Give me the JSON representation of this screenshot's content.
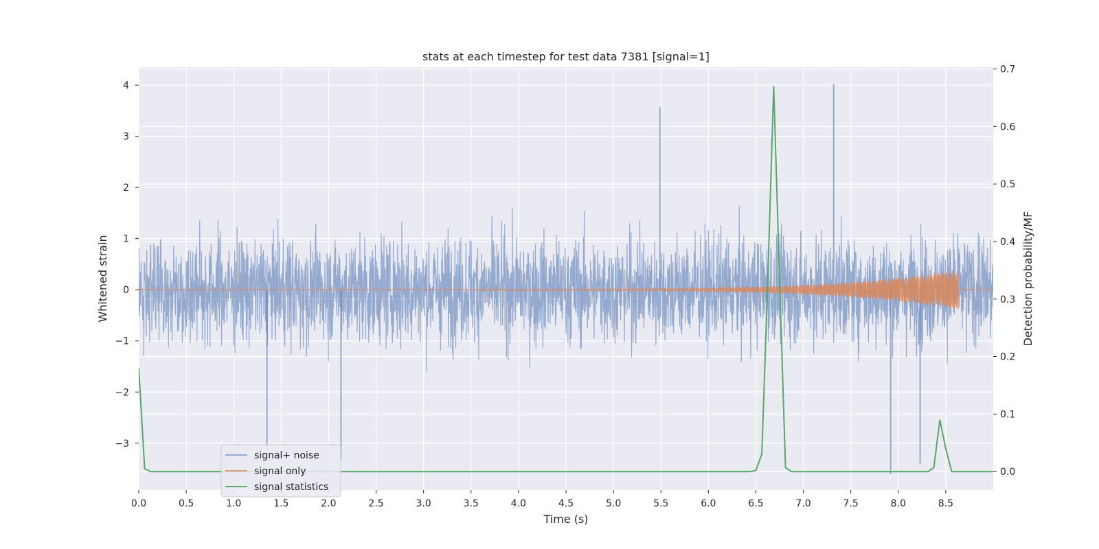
{
  "chart_data": {
    "type": "line",
    "title": "stats at each timestep for test data 7381 [signal=1]",
    "xlabel": "Time (s)",
    "ylabel": "Whitened strain",
    "y2label": "Detection probability/MF",
    "xlim": [
      0.0,
      9.0
    ],
    "ylim": [
      -3.915,
      4.35
    ],
    "y2lim": [
      -0.032,
      0.703
    ],
    "xticks": [
      "0.0",
      "0.5",
      "1.0",
      "1.5",
      "2.0",
      "2.5",
      "3.0",
      "3.5",
      "4.0",
      "4.5",
      "5.0",
      "5.5",
      "6.0",
      "6.5",
      "7.0",
      "7.5",
      "8.0",
      "8.5"
    ],
    "yticks": [
      "−3",
      "−2",
      "−1",
      "0",
      "1",
      "2",
      "3",
      "4"
    ],
    "y2ticks": [
      "0.0",
      "0.1",
      "0.2",
      "0.3",
      "0.4",
      "0.5",
      "0.6",
      "0.7"
    ],
    "grid": true,
    "legend_position": "lower-left",
    "colors": {
      "noise": "#4c72b0",
      "signal": "#dd8452",
      "stat": "#55a868",
      "background": "#eaeaf2",
      "grid": "#ffffff"
    },
    "series": [
      {
        "name": "signal+ noise",
        "axis": "left",
        "description_range": [
          -3.6,
          4.05
        ],
        "notable_peaks": [
          [
            5.49,
            3.57
          ],
          [
            7.32,
            4.02
          ],
          [
            7.92,
            -3.6
          ],
          [
            8.23,
            -3.4
          ],
          [
            1.35,
            -3.1
          ],
          [
            2.13,
            -3.3
          ]
        ]
      },
      {
        "name": "signal only",
        "axis": "left",
        "chirp_start": 3.6,
        "chirp_end": 8.63,
        "peak_amplitude": 0.38
      },
      {
        "name": "signal statistics",
        "axis": "right",
        "x": [
          0.0,
          0.0625,
          0.125,
          0.1875,
          0.25,
          6.375,
          6.4375,
          6.5,
          6.5625,
          6.625,
          6.6875,
          6.75,
          6.8125,
          6.875,
          6.9375,
          8.25,
          8.3125,
          8.375,
          8.4375,
          8.5,
          8.5625,
          8.625,
          9.0
        ],
        "values": [
          0.18,
          0.005,
          0.0,
          0.0,
          0.0,
          0.0,
          0.0,
          0.002,
          0.03,
          0.33,
          0.67,
          0.33,
          0.007,
          0.0,
          0.0,
          0.0,
          0.0,
          0.007,
          0.09,
          0.04,
          0.0,
          0.0,
          0.0
        ]
      }
    ]
  }
}
